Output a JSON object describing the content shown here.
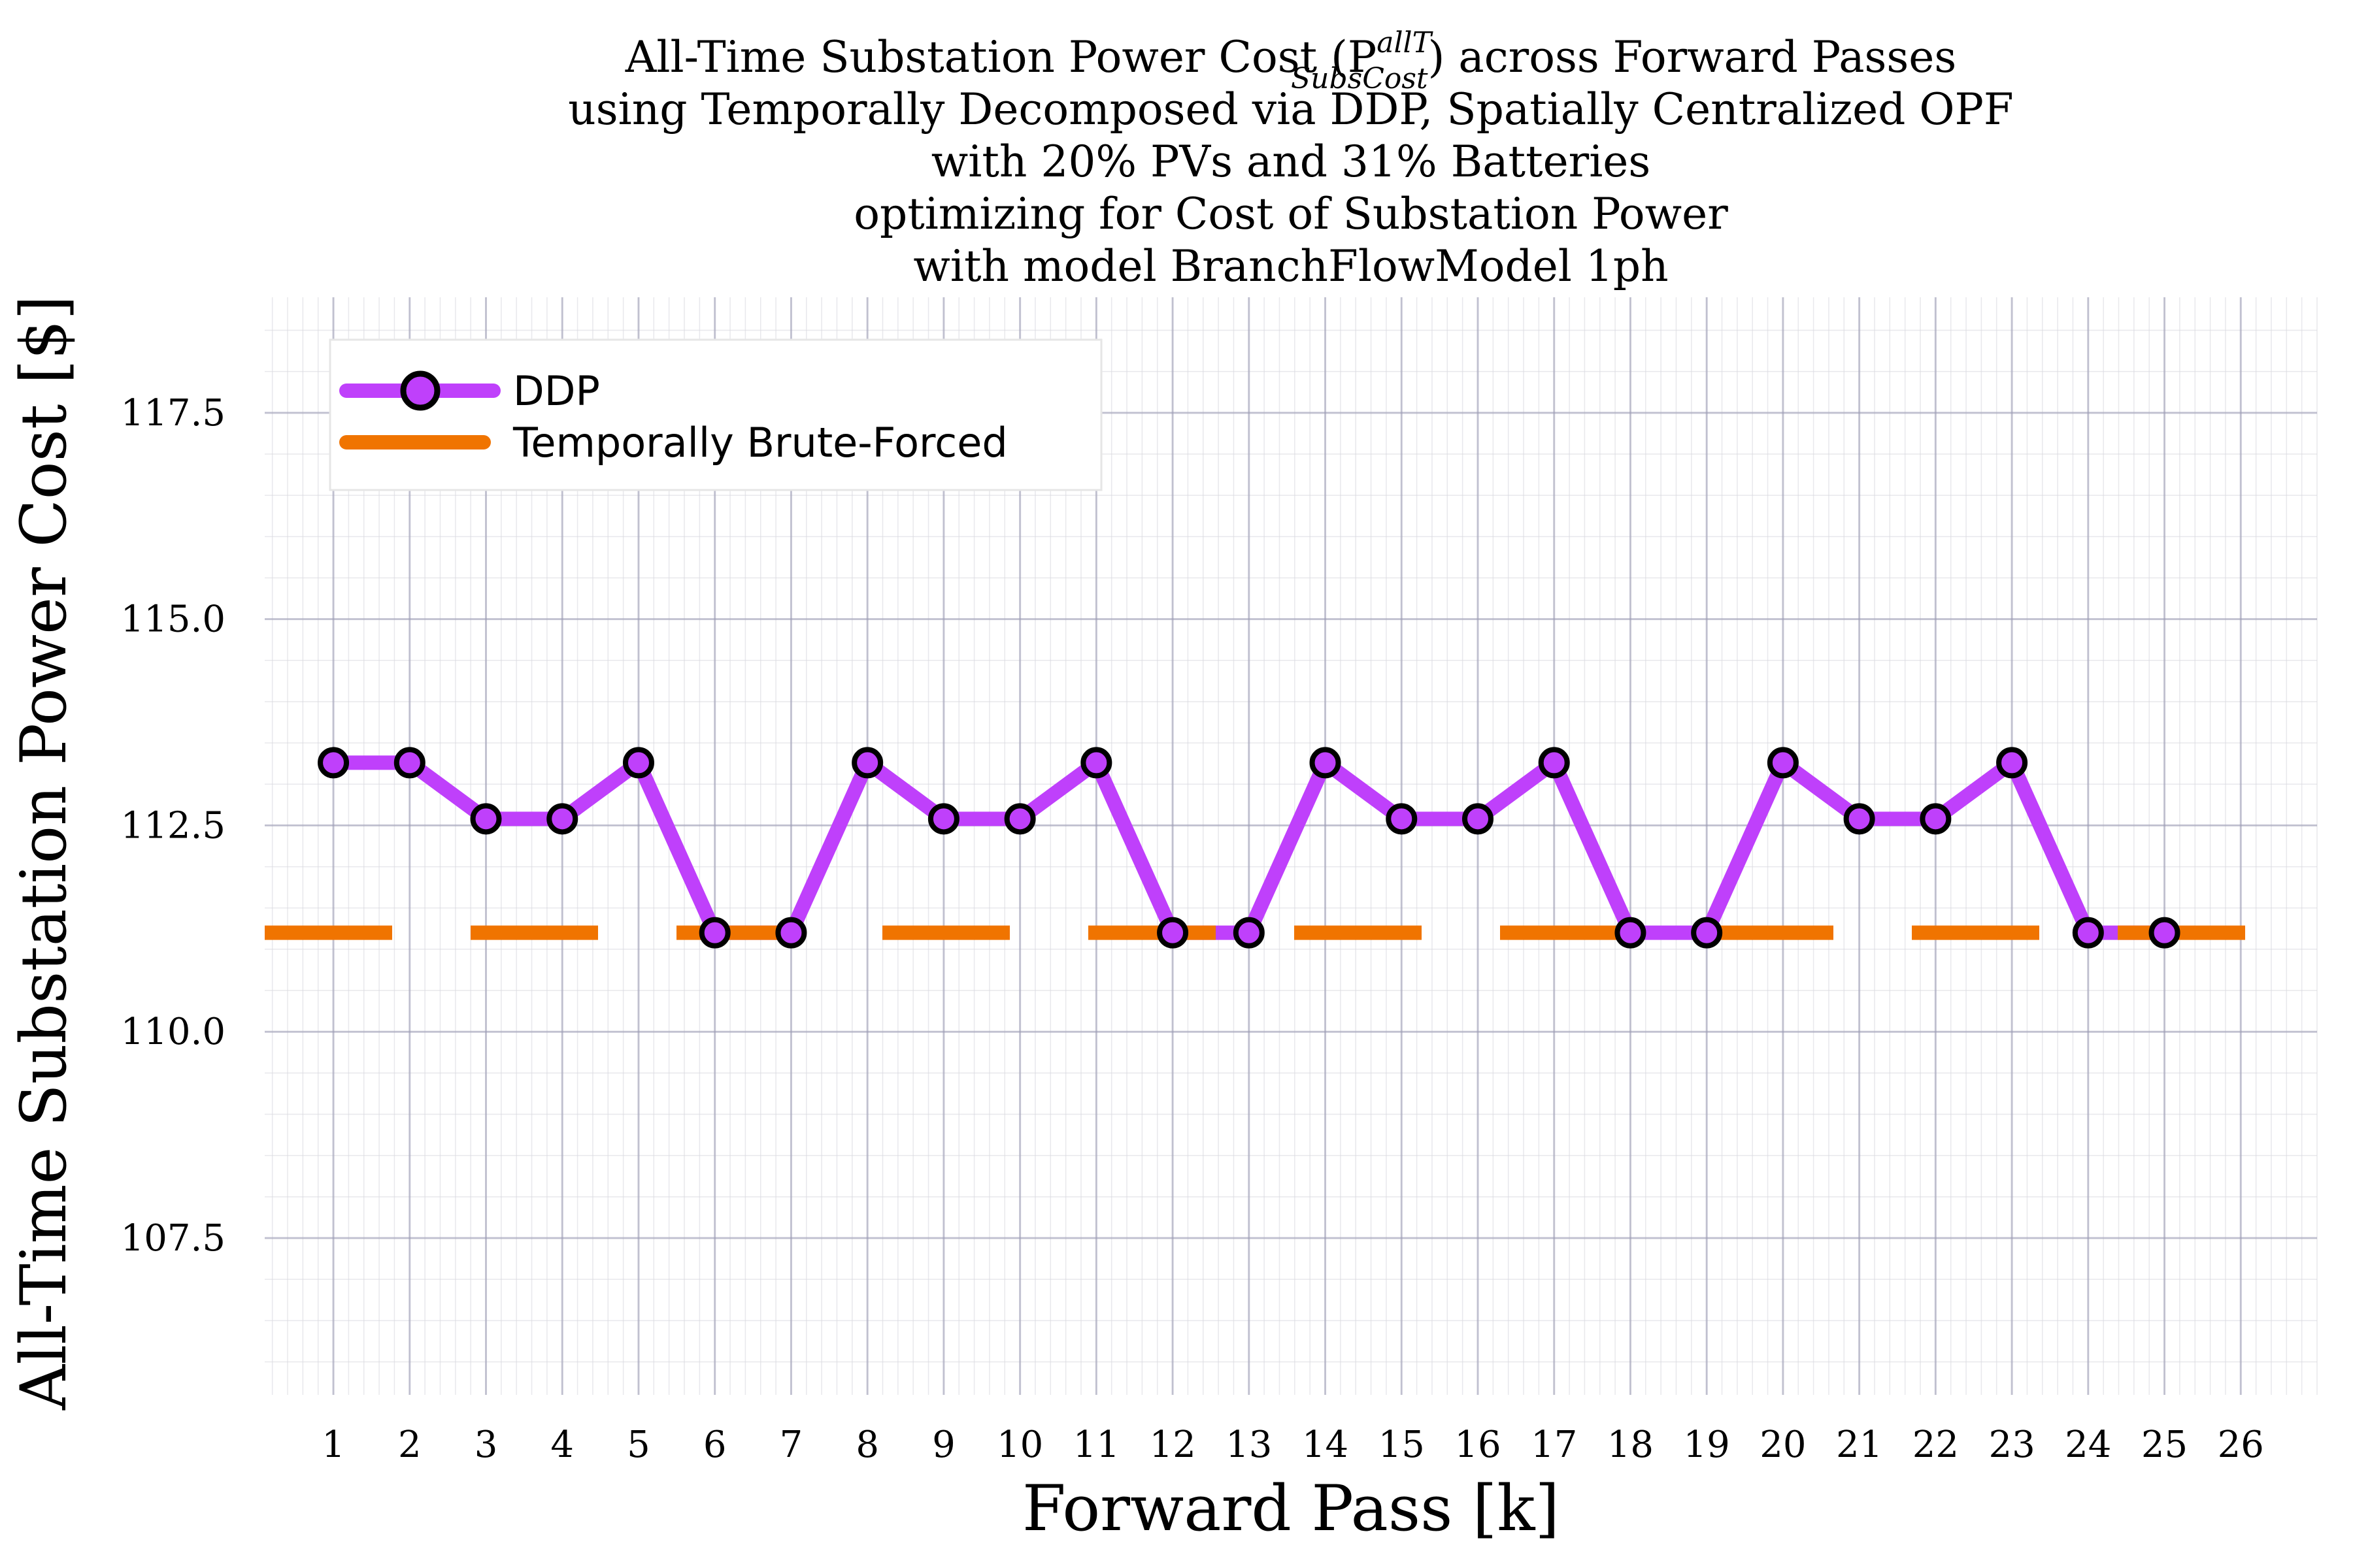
{
  "chart_data": {
    "type": "line",
    "title_lines": [
      "All-Time Substation Power Cost (P",
      "using Temporally Decomposed via DDP, Spatially Centralized OPF",
      "with 20% PVs and 31% Batteries",
      "optimizing for Cost of Substation Power",
      "with model BranchFlowModel 1ph"
    ],
    "title_symbol_sup": "allT",
    "title_symbol_sub": "SubsCost",
    "title_suffix": ") across Forward Passes",
    "xlabel": "Forward Pass [k]",
    "ylabel": "All-Time Substation Power Cost [$]",
    "xlim": [
      0.1,
      27.0
    ],
    "ylim": [
      105.6,
      118.9
    ],
    "xticks": [
      1,
      2,
      3,
      4,
      5,
      6,
      7,
      8,
      9,
      10,
      11,
      12,
      13,
      14,
      15,
      16,
      17,
      18,
      19,
      20,
      21,
      22,
      23,
      24,
      25,
      26
    ],
    "yticks": [
      107.5,
      110.0,
      112.5,
      115.0,
      117.5
    ],
    "ytick_labels": [
      "107.5",
      "110.0",
      "112.5",
      "115.0",
      "117.5"
    ],
    "grid": true,
    "minor_grid": true,
    "legend_position": "top-left",
    "series": [
      {
        "name": "DDP",
        "color": "#bf40fb",
        "marker": "circle",
        "x": [
          1,
          2,
          3,
          4,
          5,
          6,
          7,
          8,
          9,
          10,
          11,
          12,
          13,
          14,
          15,
          16,
          17,
          18,
          19,
          20,
          21,
          22,
          23,
          24,
          25
        ],
        "y": [
          113.26,
          113.26,
          112.58,
          112.58,
          113.26,
          111.2,
          111.2,
          113.26,
          112.58,
          112.58,
          113.26,
          111.2,
          111.2,
          113.26,
          112.58,
          112.58,
          113.26,
          111.2,
          111.2,
          113.26,
          112.58,
          112.58,
          113.26,
          111.2,
          111.2
        ]
      },
      {
        "name": "Temporally Brute-Forced",
        "color": "#f07400",
        "style": "dashed",
        "y_constant": 111.2
      }
    ]
  }
}
